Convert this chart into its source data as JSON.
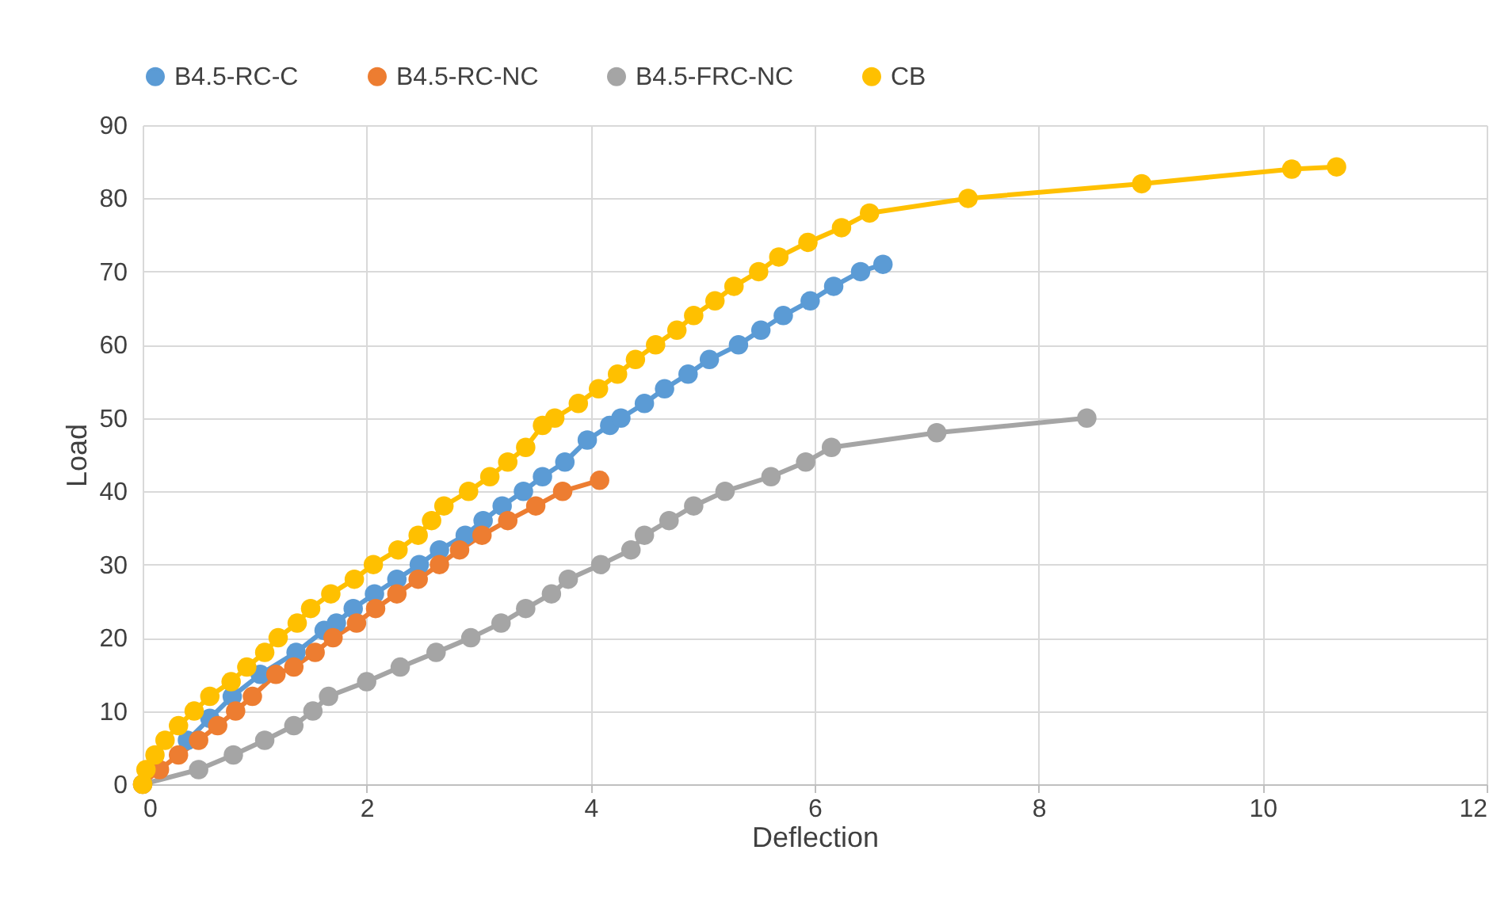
{
  "chart_data": {
    "type": "line",
    "xlabel": "Deflection",
    "ylabel": "Load",
    "xlim": [
      0,
      12
    ],
    "xticks": [
      0,
      2,
      4,
      6,
      8,
      10,
      12
    ],
    "ylim": [
      0,
      90
    ],
    "yticks": [
      0,
      10,
      20,
      30,
      40,
      50,
      60,
      70,
      80,
      90
    ],
    "grid": true,
    "legend": "top",
    "marker": "circle",
    "series": [
      {
        "name": "B4.5-RC-C",
        "color": "#5b9bd5",
        "x": [
          0.4,
          0.6,
          0.8,
          1.05,
          1.37,
          1.62,
          1.73,
          1.88,
          2.07,
          2.27,
          2.47,
          2.65,
          2.88,
          3.04,
          3.21,
          3.4,
          3.57,
          3.77,
          3.97,
          4.17,
          4.27,
          4.48,
          4.66,
          4.87,
          5.06,
          5.32,
          5.52,
          5.72,
          5.96,
          6.17,
          6.41,
          6.61
        ],
        "values": [
          6,
          9,
          12,
          15,
          18,
          21,
          22,
          24,
          26,
          28,
          30,
          32,
          34,
          36,
          38,
          40,
          42,
          44,
          47,
          49,
          50,
          52,
          54,
          56,
          58,
          60,
          62,
          64,
          66,
          68,
          70,
          71
        ]
      },
      {
        "name": "B4.5-RC-NC",
        "color": "#ed7d31",
        "x": [
          0,
          0.15,
          0.32,
          0.5,
          0.67,
          0.83,
          0.98,
          1.19,
          1.35,
          1.54,
          1.7,
          1.91,
          2.08,
          2.27,
          2.46,
          2.65,
          2.83,
          3.03,
          3.26,
          3.51,
          3.75,
          4.08
        ],
        "values": [
          0,
          2,
          4,
          6,
          8,
          10,
          12,
          15,
          16,
          18,
          20,
          22,
          24,
          26,
          28,
          30,
          32,
          34,
          36,
          38,
          40,
          41.5
        ]
      },
      {
        "name": "B4.5-FRC-NC",
        "color": "#a5a5a5",
        "x": [
          0,
          0.5,
          0.81,
          1.09,
          1.35,
          1.52,
          1.66,
          2.0,
          2.3,
          2.62,
          2.93,
          3.2,
          3.42,
          3.65,
          3.8,
          4.09,
          4.36,
          4.48,
          4.7,
          4.92,
          5.2,
          5.61,
          5.92,
          6.15,
          7.09,
          8.43
        ],
        "values": [
          0,
          2,
          4,
          6,
          8,
          10,
          12,
          14,
          16,
          18,
          20,
          22,
          24,
          26,
          28,
          30,
          32,
          34,
          36,
          38,
          40,
          42,
          44,
          46,
          48,
          50
        ]
      },
      {
        "name": "CB",
        "color": "#ffc000",
        "x": [
          0,
          0.03,
          0.11,
          0.2,
          0.32,
          0.46,
          0.6,
          0.79,
          0.93,
          1.09,
          1.21,
          1.38,
          1.5,
          1.68,
          1.89,
          2.06,
          2.28,
          2.46,
          2.58,
          2.69,
          2.91,
          3.1,
          3.26,
          3.42,
          3.57,
          3.68,
          3.89,
          4.07,
          4.24,
          4.4,
          4.58,
          4.77,
          4.92,
          5.11,
          5.28,
          5.5,
          5.68,
          5.94,
          6.24,
          6.49,
          7.37,
          8.92,
          10.26,
          10.66
        ],
        "values": [
          0,
          2,
          4,
          6,
          8,
          10,
          12,
          14,
          16,
          18,
          20,
          22,
          24,
          26,
          28,
          30,
          32,
          34,
          36,
          38,
          40,
          42,
          44,
          46,
          49,
          50,
          52,
          54,
          56,
          58,
          60,
          62,
          64,
          66,
          68,
          70,
          72,
          74,
          76,
          78,
          80,
          82,
          84,
          84.3
        ]
      }
    ]
  }
}
